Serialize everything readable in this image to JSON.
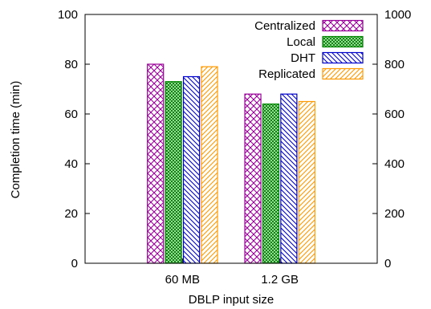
{
  "chart_data": {
    "type": "bar",
    "title": "",
    "xlabel": "DBLP input size",
    "ylabel": "Completion time (min)",
    "categories": [
      "60 MB",
      "1.2 GB"
    ],
    "ylim": [
      0,
      100
    ],
    "yticks": [
      0,
      20,
      40,
      60,
      80,
      100
    ],
    "y2lim": [
      0,
      1000
    ],
    "y2ticks": [
      0,
      200,
      400,
      600,
      800,
      1000
    ],
    "grid": false,
    "legend_position": "top-right",
    "series": [
      {
        "name": "Centralized",
        "values": [
          80,
          68
        ],
        "color": "#990099",
        "pattern": "crosshatch"
      },
      {
        "name": "Local",
        "values": [
          73,
          64
        ],
        "color": "#008800",
        "pattern": "dense-crosshatch"
      },
      {
        "name": "DHT",
        "values": [
          75,
          68
        ],
        "color": "#0000cc",
        "pattern": "diagonal-back"
      },
      {
        "name": "Replicated",
        "values": [
          79,
          65
        ],
        "color": "#ff9900",
        "pattern": "diagonal-forward"
      }
    ]
  }
}
